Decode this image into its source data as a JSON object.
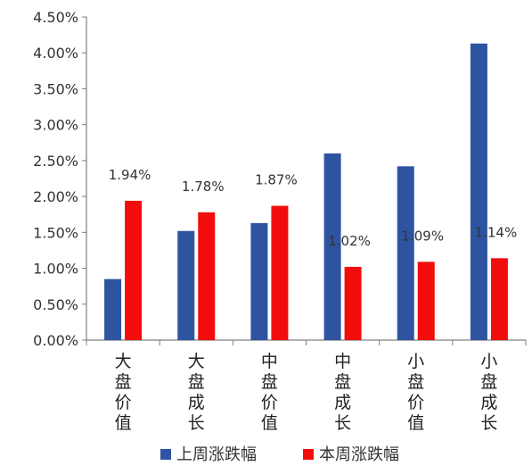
{
  "chart_data": {
    "type": "bar",
    "categories": [
      "大盘价值",
      "大盘成长",
      "中盘价值",
      "中盘成长",
      "小盘价值",
      "小盘成长"
    ],
    "series": [
      {
        "name": "上周涨跌幅",
        "color": "#2E54A1",
        "values": [
          0.85,
          1.52,
          1.63,
          2.6,
          2.42,
          4.13
        ]
      },
      {
        "name": "本周涨跌幅",
        "color": "#F20D0D",
        "values": [
          1.94,
          1.78,
          1.87,
          1.02,
          1.09,
          1.14
        ],
        "data_labels": [
          "1.94%",
          "1.78%",
          "1.87%",
          "1.02%",
          "1.09%",
          "1.14%"
        ]
      }
    ],
    "y_ticks": [
      "0.00%",
      "0.50%",
      "1.00%",
      "1.50%",
      "2.00%",
      "2.50%",
      "3.00%",
      "3.50%",
      "4.00%",
      "4.50%"
    ],
    "ylim": [
      0,
      4.5
    ],
    "grid": false,
    "legend_position": "bottom"
  }
}
